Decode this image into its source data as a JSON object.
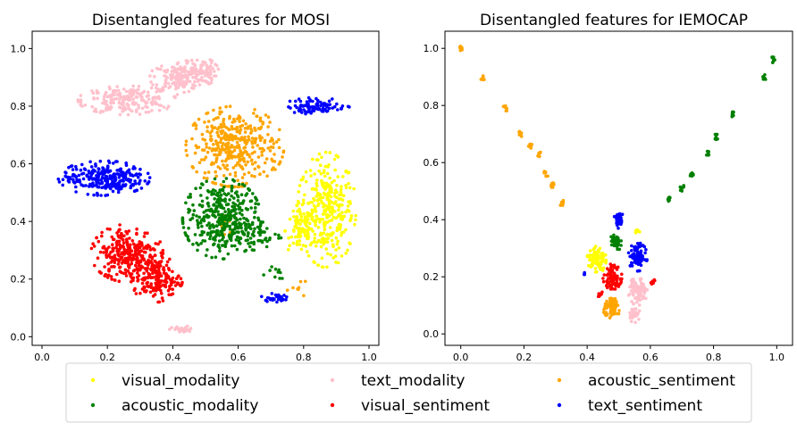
{
  "chart_data": [
    {
      "type": "scatter",
      "title": "Disentangled features for MOSI",
      "xlabel": "",
      "ylabel": "",
      "xlim": [
        -0.03,
        1.03
      ],
      "ylim": [
        -0.03,
        1.06
      ],
      "xticks": [
        "0.0",
        "0.2",
        "0.4",
        "0.6",
        "0.8",
        "1.0"
      ],
      "yticks": [
        "0.0",
        "0.2",
        "0.4",
        "0.6",
        "0.8",
        "1.0"
      ],
      "grid": false,
      "series": [
        {
          "name": "visual_modality",
          "color": "#ffff00",
          "clusters": [
            {
              "cx": 0.87,
              "cy": 0.44,
              "rx": 0.09,
              "ry": 0.2,
              "n": 320
            },
            {
              "cx": 0.79,
              "cy": 0.37,
              "rx": 0.05,
              "ry": 0.1,
              "n": 80
            }
          ]
        },
        {
          "name": "text_modality",
          "color": "#ffc0cb",
          "clusters": [
            {
              "cx": 0.26,
              "cy": 0.82,
              "rx": 0.15,
              "ry": 0.05,
              "n": 200
            },
            {
              "cx": 0.42,
              "cy": 0.9,
              "rx": 0.09,
              "ry": 0.06,
              "n": 160
            },
            {
              "cx": 0.48,
              "cy": 0.92,
              "rx": 0.06,
              "ry": 0.05,
              "n": 80
            },
            {
              "cx": 0.43,
              "cy": 0.025,
              "rx": 0.04,
              "ry": 0.012,
              "n": 30
            }
          ]
        },
        {
          "name": "acoustic_sentiment",
          "color": "#ffa500",
          "clusters": [
            {
              "cx": 0.59,
              "cy": 0.66,
              "rx": 0.15,
              "ry": 0.14,
              "n": 380
            },
            {
              "cx": 0.56,
              "cy": 0.38,
              "rx": 0.02,
              "ry": 0.04,
              "n": 12
            },
            {
              "cx": 0.78,
              "cy": 0.17,
              "rx": 0.05,
              "ry": 0.03,
              "n": 8
            }
          ]
        },
        {
          "name": "acoustic_modality",
          "color": "#008000",
          "clusters": [
            {
              "cx": 0.55,
              "cy": 0.41,
              "rx": 0.12,
              "ry": 0.14,
              "n": 380
            },
            {
              "cx": 0.66,
              "cy": 0.35,
              "rx": 0.08,
              "ry": 0.05,
              "n": 50
            },
            {
              "cx": 0.7,
              "cy": 0.22,
              "rx": 0.06,
              "ry": 0.04,
              "n": 10
            }
          ]
        },
        {
          "name": "visual_sentiment",
          "color": "#ff0000",
          "clusters": [
            {
              "cx": 0.26,
              "cy": 0.29,
              "rx": 0.11,
              "ry": 0.1,
              "n": 280
            },
            {
              "cx": 0.35,
              "cy": 0.2,
              "rx": 0.08,
              "ry": 0.08,
              "n": 180
            }
          ]
        },
        {
          "name": "text_sentiment",
          "color": "#0000ff",
          "clusters": [
            {
              "cx": 0.19,
              "cy": 0.55,
              "rx": 0.14,
              "ry": 0.06,
              "n": 280
            },
            {
              "cx": 0.84,
              "cy": 0.8,
              "rx": 0.1,
              "ry": 0.03,
              "n": 90
            },
            {
              "cx": 0.71,
              "cy": 0.135,
              "rx": 0.04,
              "ry": 0.015,
              "n": 30
            }
          ]
        }
      ]
    },
    {
      "type": "scatter",
      "title": "Disentangled features for IEMOCAP",
      "xlabel": "",
      "ylabel": "",
      "xlim": [
        -0.05,
        1.05
      ],
      "ylim": [
        -0.04,
        1.06
      ],
      "xticks": [
        "0.0",
        "0.2",
        "0.4",
        "0.6",
        "0.8",
        "1.0"
      ],
      "yticks": [
        "0.0",
        "0.2",
        "0.4",
        "0.6",
        "0.8",
        "1.0"
      ],
      "grid": false,
      "series": [
        {
          "name": "visual_modality",
          "color": "#ffff00",
          "clusters": [
            {
              "cx": 0.43,
              "cy": 0.26,
              "rx": 0.03,
              "ry": 0.05,
              "n": 90
            },
            {
              "cx": 0.56,
              "cy": 0.36,
              "rx": 0.01,
              "ry": 0.01,
              "n": 8
            }
          ]
        },
        {
          "name": "text_modality",
          "color": "#ffc0cb",
          "clusters": [
            {
              "cx": 0.56,
              "cy": 0.15,
              "rx": 0.03,
              "ry": 0.05,
              "n": 90
            },
            {
              "cx": 0.55,
              "cy": 0.07,
              "rx": 0.02,
              "ry": 0.03,
              "n": 30
            }
          ]
        },
        {
          "name": "acoustic_sentiment",
          "color": "#ffa500",
          "clusters": [
            {
              "cx": 0.48,
              "cy": 0.09,
              "rx": 0.03,
              "ry": 0.035,
              "n": 70
            }
          ],
          "line_points": [
            [
              0.0,
              1.0
            ],
            [
              0.07,
              0.9
            ],
            [
              0.14,
              0.79
            ],
            [
              0.19,
              0.7
            ],
            [
              0.22,
              0.66
            ],
            [
              0.25,
              0.63
            ],
            [
              0.27,
              0.56
            ],
            [
              0.29,
              0.52
            ],
            [
              0.32,
              0.46
            ]
          ]
        },
        {
          "name": "acoustic_modality",
          "color": "#008000",
          "clusters": [
            {
              "cx": 0.49,
              "cy": 0.32,
              "rx": 0.018,
              "ry": 0.035,
              "n": 45
            }
          ],
          "line_points": [
            [
              0.66,
              0.47
            ],
            [
              0.7,
              0.51
            ],
            [
              0.73,
              0.56
            ],
            [
              0.78,
              0.63
            ],
            [
              0.81,
              0.69
            ],
            [
              0.86,
              0.77
            ],
            [
              0.96,
              0.9
            ],
            [
              0.99,
              0.96
            ]
          ]
        },
        {
          "name": "visual_sentiment",
          "color": "#ff0000",
          "clusters": [
            {
              "cx": 0.48,
              "cy": 0.2,
              "rx": 0.03,
              "ry": 0.045,
              "n": 90
            },
            {
              "cx": 0.44,
              "cy": 0.14,
              "rx": 0.01,
              "ry": 0.01,
              "n": 8
            },
            {
              "cx": 0.61,
              "cy": 0.18,
              "rx": 0.008,
              "ry": 0.01,
              "n": 6
            }
          ]
        },
        {
          "name": "text_sentiment",
          "color": "#0000ff",
          "clusters": [
            {
              "cx": 0.56,
              "cy": 0.27,
              "rx": 0.03,
              "ry": 0.05,
              "n": 90
            },
            {
              "cx": 0.5,
              "cy": 0.4,
              "rx": 0.015,
              "ry": 0.03,
              "n": 40
            },
            {
              "cx": 0.39,
              "cy": 0.21,
              "rx": 0.005,
              "ry": 0.005,
              "n": 3
            }
          ]
        }
      ]
    }
  ],
  "legend": {
    "items": [
      {
        "label": "visual_modality",
        "color": "#ffff00"
      },
      {
        "label": "acoustic_modality",
        "color": "#008000"
      },
      {
        "label": "text_modality",
        "color": "#ffc0cb"
      },
      {
        "label": "visual_sentiment",
        "color": "#ff0000"
      },
      {
        "label": "acoustic_sentiment",
        "color": "#ffa500"
      },
      {
        "label": "text_sentiment",
        "color": "#0000ff"
      }
    ]
  }
}
